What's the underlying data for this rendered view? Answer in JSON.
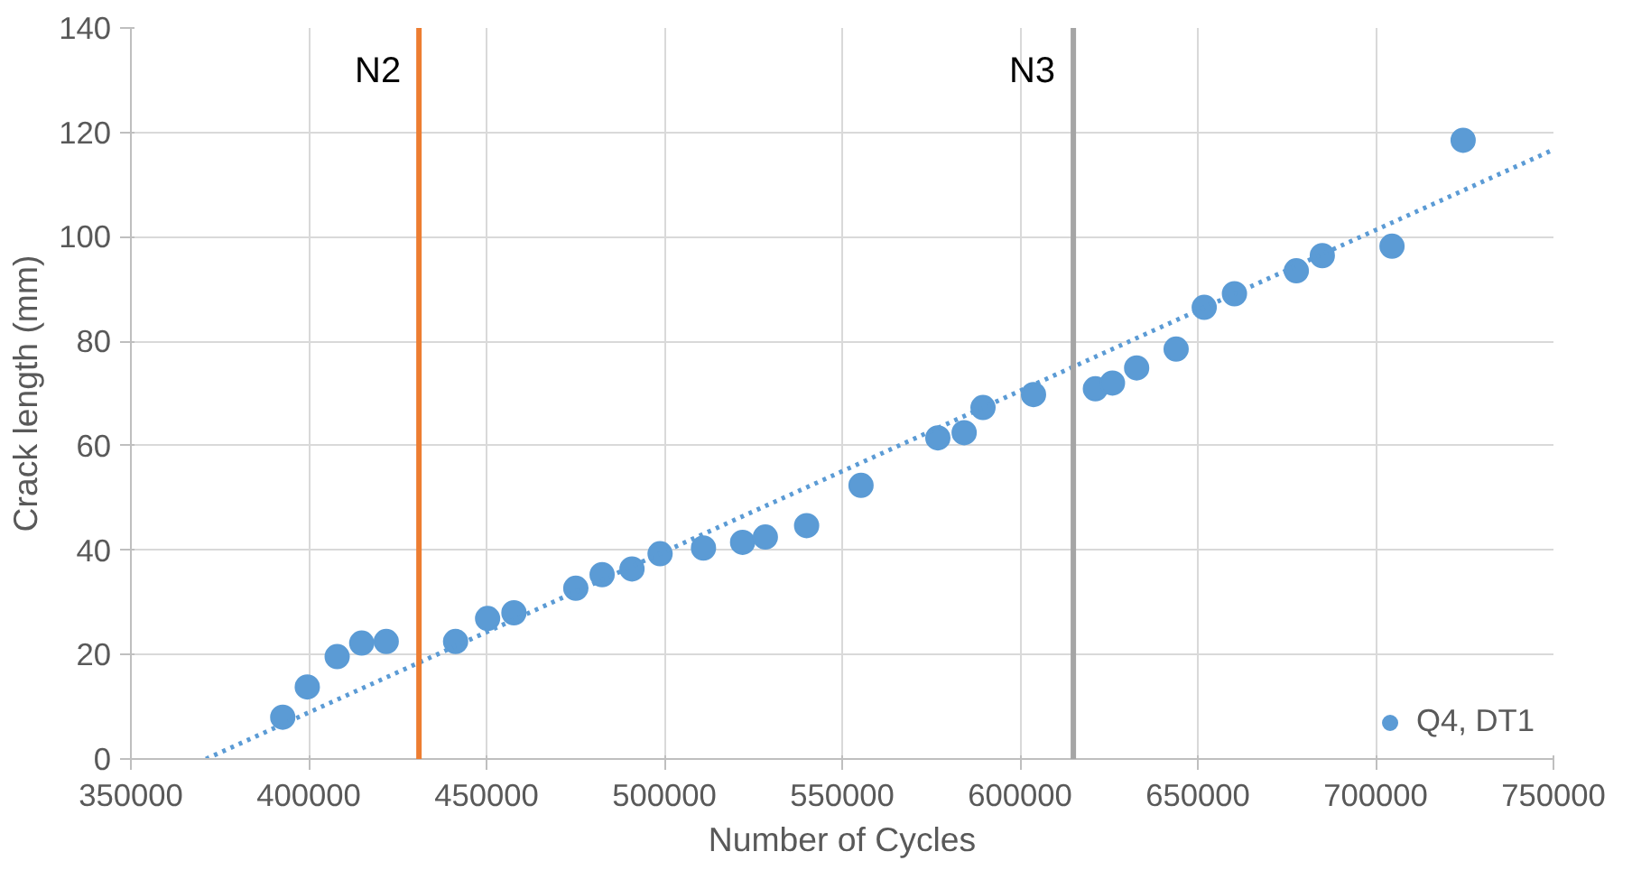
{
  "chart_data": {
    "type": "scatter",
    "xlabel": "Number of Cycles",
    "ylabel": "Crack length (mm)",
    "xlim": [
      350000,
      750000
    ],
    "ylim": [
      0,
      140
    ],
    "xticks": [
      350000,
      400000,
      450000,
      500000,
      550000,
      600000,
      650000,
      700000,
      750000
    ],
    "yticks": [
      0,
      20,
      40,
      60,
      80,
      100,
      120,
      140
    ],
    "grid": true,
    "legend": "bottom right",
    "marker": "circle",
    "series": [
      {
        "name": "Q4, DT1",
        "color": "#5b9bd5",
        "x": [
          392700,
          399600,
          408000,
          414900,
          421800,
          441300,
          450300,
          457700,
          475100,
          482500,
          490900,
          498800,
          511000,
          522000,
          528400,
          540000,
          555300,
          576900,
          584300,
          589600,
          603800,
          621200,
          626000,
          632800,
          643900,
          651800,
          660300,
          677700,
          685000,
          704600,
          724600
        ],
        "values": [
          8.0,
          13.8,
          19.6,
          22.2,
          22.5,
          22.5,
          26.9,
          28.0,
          32.7,
          35.3,
          36.4,
          39.3,
          40.4,
          41.5,
          42.5,
          44.7,
          52.4,
          61.5,
          62.5,
          67.3,
          69.8,
          70.9,
          72.0,
          74.9,
          78.5,
          86.5,
          89.1,
          93.5,
          96.4,
          98.2,
          118.5
        ]
      },
      {
        "color": "#5b9bd5",
        "type": "line",
        "line_style": "dotted",
        "marker": "none",
        "x": [
          371100,
          750000
        ],
        "values": [
          0,
          116.7
        ]
      }
    ],
    "ref_lines": [
      {
        "axis": "x",
        "value": 431000,
        "label": "N2",
        "color": "#ed7d31"
      },
      {
        "axis": "x",
        "value": 615000,
        "label": "N3",
        "color": "#a5a5a5"
      }
    ]
  }
}
